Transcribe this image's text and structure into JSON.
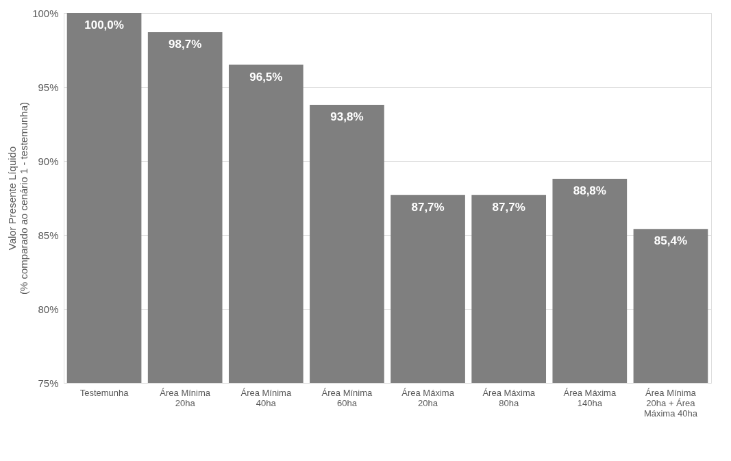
{
  "chart_data": {
    "type": "bar",
    "ylabel": "Valor Presente Líquido\n(% comparado ao cenário 1 - testemunha)",
    "categories": [
      "Testemunha",
      "Área Mínima 20ha",
      "Área Mínima 40ha",
      "Área Mínima 60ha",
      "Área Máxima 20ha",
      "Área Máxima 80ha",
      "Área Máxima 140ha",
      "Área Mínima 20ha + Área Máxima 40ha"
    ],
    "values": [
      100.0,
      98.7,
      96.5,
      93.8,
      87.7,
      87.7,
      88.8,
      85.4
    ],
    "value_labels": [
      "100,0%",
      "98,7%",
      "96,5%",
      "93,8%",
      "87,7%",
      "87,7%",
      "88,8%",
      "85,4%"
    ],
    "color": "#7f7f7f",
    "ylim": [
      75,
      100
    ],
    "yticks": [
      {
        "value": 75,
        "label": "75%"
      },
      {
        "value": 80,
        "label": "80%"
      },
      {
        "value": 85,
        "label": "85%"
      },
      {
        "value": 90,
        "label": "90%"
      },
      {
        "value": 95,
        "label": "95%"
      },
      {
        "value": 100,
        "label": "100%"
      }
    ],
    "grid": "y"
  }
}
